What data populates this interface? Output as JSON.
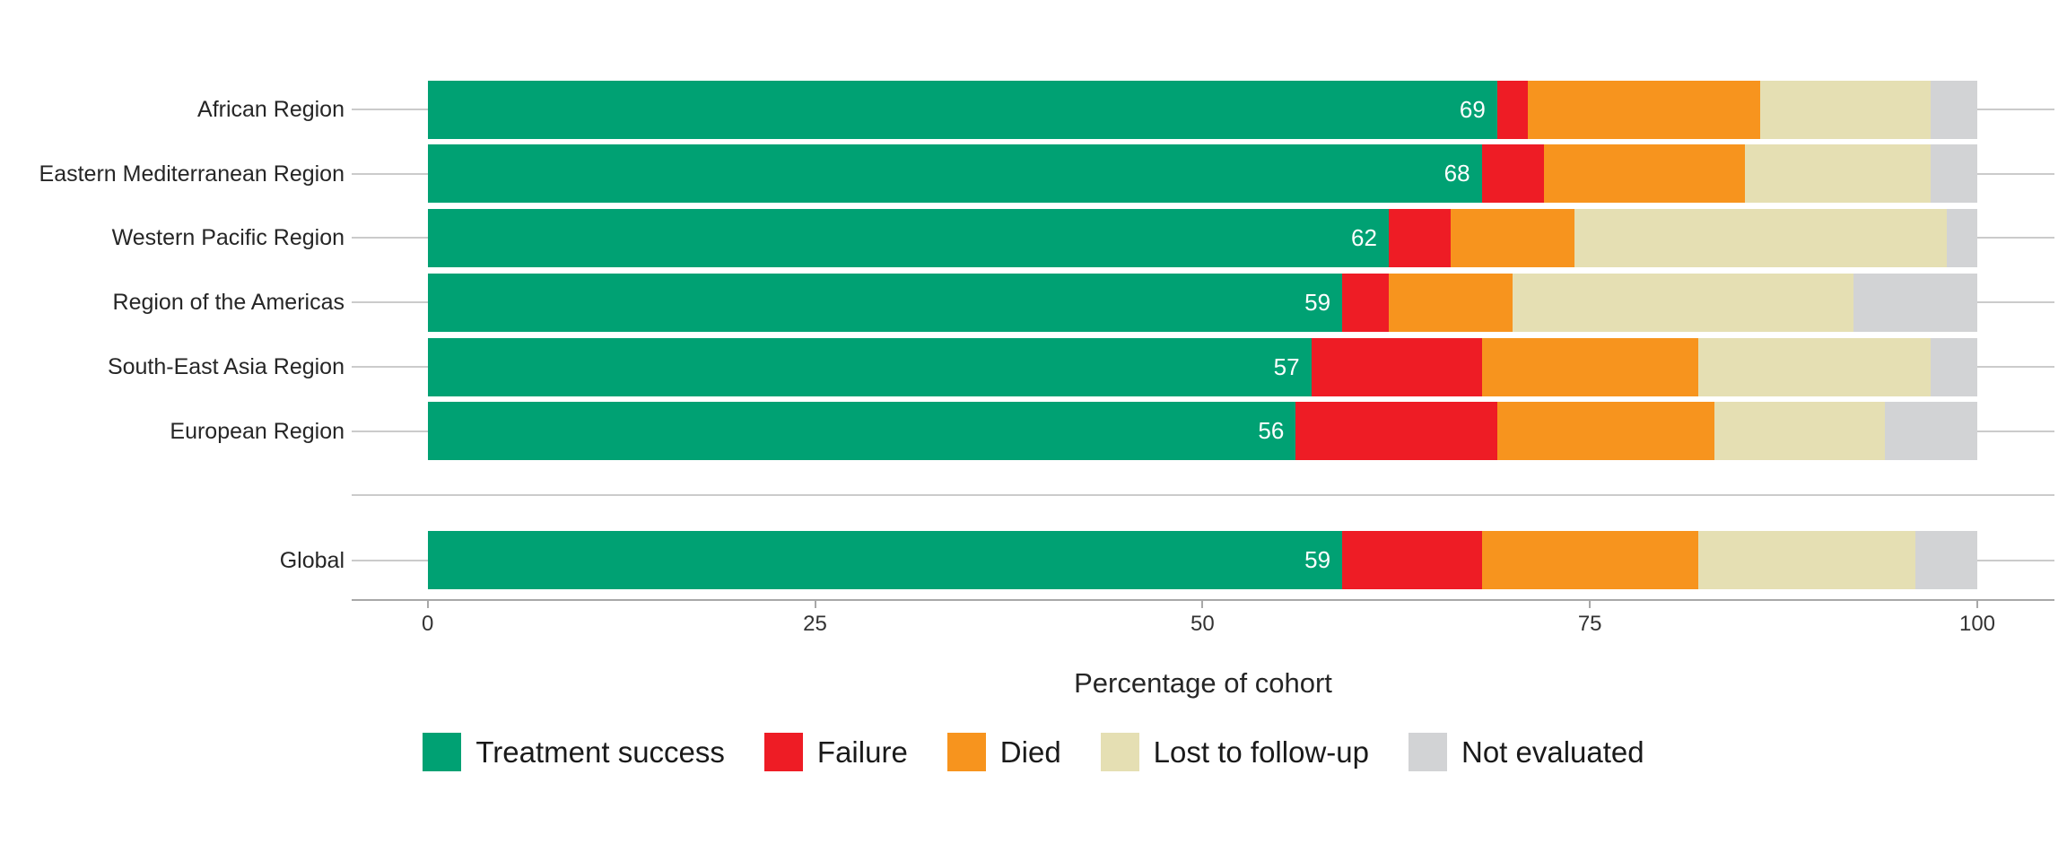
{
  "chart_data": {
    "type": "bar",
    "orientation": "horizontal",
    "stacked": true,
    "title": "",
    "xlabel": "Percentage of cohort",
    "xlim": [
      0,
      100
    ],
    "x_ticks": [
      "0",
      "25",
      "50",
      "75",
      "100"
    ],
    "x_tick_values": [
      0,
      25,
      50,
      75,
      100
    ],
    "grid": "horizontal-only",
    "legend_position": "bottom",
    "series_names": [
      "Treatment success",
      "Failure",
      "Died",
      "Lost to follow-up",
      "Not evaluated"
    ],
    "legend": [
      {
        "label": "Treatment success",
        "color": "#00A173"
      },
      {
        "label": "Failure",
        "color": "#EE1C25"
      },
      {
        "label": "Died",
        "color": "#F7941E"
      },
      {
        "label": "Lost to follow-up",
        "color": "#E5DFB3"
      },
      {
        "label": "Not evaluated",
        "color": "#D2D3D5"
      }
    ],
    "rows": [
      {
        "label": "African Region",
        "slug": "african-region",
        "values": [
          69,
          2,
          15,
          11,
          3
        ],
        "value_label": "69"
      },
      {
        "label": "Eastern Mediterranean Region",
        "slug": "eastern-mediterranean-region",
        "values": [
          68,
          4,
          13,
          12,
          3
        ],
        "value_label": "68"
      },
      {
        "label": "Western Pacific Region",
        "slug": "western-pacific-region",
        "values": [
          62,
          4,
          8,
          24,
          2
        ],
        "value_label": "62"
      },
      {
        "label": "Region of the Americas",
        "slug": "region-of-the-americas",
        "values": [
          59,
          3,
          8,
          22,
          8
        ],
        "value_label": "59"
      },
      {
        "label": "South-East Asia Region",
        "slug": "south-east-asia-region",
        "values": [
          57,
          11,
          14,
          15,
          3
        ],
        "value_label": "57"
      },
      {
        "label": "European Region",
        "slug": "european-region",
        "values": [
          56,
          13,
          14,
          11,
          6
        ],
        "value_label": "56"
      },
      {
        "label": "Global",
        "slug": "global",
        "values": [
          59,
          9,
          14,
          14,
          4
        ],
        "value_label": "59"
      }
    ]
  },
  "colors": {
    "gridline": "#CBCBCB",
    "axis_line": "#A8A8A8",
    "tick_text": "#333333",
    "label_text": "#262626",
    "bar_value_text": "#ffffff",
    "background": "#ffffff"
  }
}
